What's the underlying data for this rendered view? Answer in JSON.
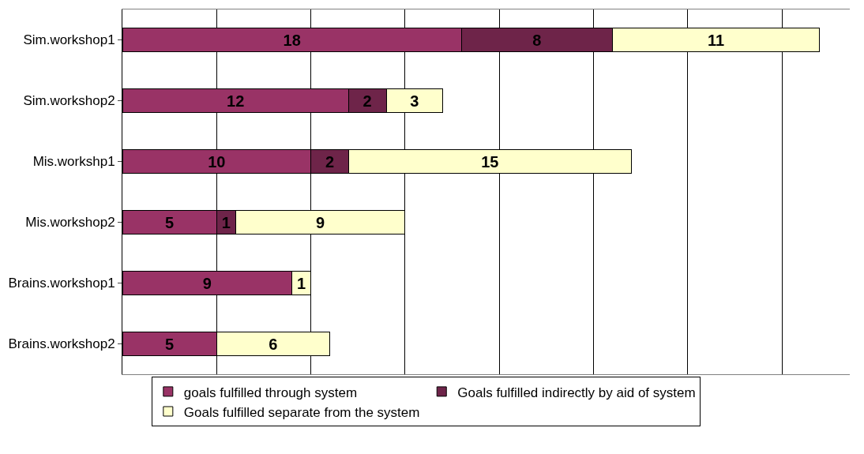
{
  "chart_data": {
    "type": "bar",
    "orientation": "horizontal",
    "stacked": true,
    "categories": [
      "Sim.workshop1",
      "Sim.workshop2",
      "Mis.workshp1",
      "Mis.workshop2",
      "Brains.workshop1",
      "Brains.workshop2"
    ],
    "series": [
      {
        "name": "goals fulfilled through system",
        "color": "#993366",
        "values": [
          18,
          12,
          10,
          5,
          9,
          5
        ],
        "value_labels": [
          "18",
          "12",
          "10",
          "5",
          "9",
          "5"
        ]
      },
      {
        "name": "Goals fulfilled indirectly by aid of system",
        "color": "#6e2449",
        "values": [
          8,
          2,
          2,
          1,
          0,
          0
        ],
        "value_labels": [
          "8",
          "2",
          "2",
          "1",
          null,
          null
        ]
      },
      {
        "name": "Goals fulfilled separate from the system",
        "color": "#ffffcc",
        "values": [
          11,
          3,
          15,
          9,
          1,
          6
        ],
        "value_labels": [
          "11",
          "3",
          "15",
          "9",
          "1",
          "6"
        ]
      }
    ],
    "xlim": [
      0,
      38.6
    ],
    "xticks": [
      {
        "value": 0,
        "label": null
      },
      {
        "value": 5,
        "label": null
      },
      {
        "value": 10,
        "label": null
      },
      {
        "value": 15,
        "label": null
      },
      {
        "value": 20,
        "label": null
      },
      {
        "value": 25,
        "label": null
      },
      {
        "value": 30,
        "label": null
      },
      {
        "value": 35,
        "label": null
      }
    ],
    "tick_labels": "y",
    "grid": "x",
    "legend": "bottom"
  }
}
